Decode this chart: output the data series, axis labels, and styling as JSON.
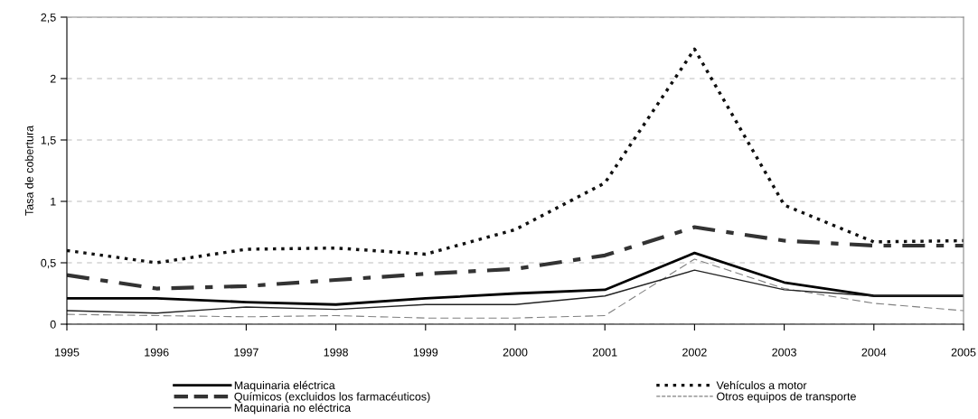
{
  "chart_data": {
    "type": "line",
    "ylabel": "Tasa de cobertura",
    "x": [
      1995,
      1996,
      1997,
      1998,
      1999,
      2000,
      2001,
      2002,
      2003,
      2004,
      2005
    ],
    "xlim": [
      1995,
      2005
    ],
    "xticks": [
      1995,
      1996,
      1997,
      1998,
      1999,
      2000,
      2001,
      2002,
      2003,
      2004,
      2005
    ],
    "ylim": [
      0,
      2.5
    ],
    "yticks": [
      0,
      {
        "value": 0.5,
        "label": "0,5"
      },
      1,
      {
        "value": 1.5,
        "label": "1,5"
      },
      2,
      {
        "value": 2.5,
        "label": "2,5"
      }
    ],
    "grid": "y",
    "legend": "bottom",
    "marker": "none",
    "series": [
      {
        "name": "Maquinaria eléctrica",
        "color": "#000000",
        "line_style": "solid",
        "values": [
          0.21,
          0.21,
          0.18,
          0.16,
          0.21,
          0.25,
          0.28,
          0.58,
          0.34,
          0.23,
          0.23
        ]
      },
      {
        "name": "Vehículos a motor",
        "color": "#111111",
        "line_style": "dotted",
        "values": [
          0.6,
          0.5,
          0.61,
          0.62,
          0.57,
          0.77,
          1.15,
          2.24,
          0.97,
          0.67,
          0.68
        ]
      },
      {
        "name": "Químicos (excluidos los farmacéuticos)",
        "color": "#333333",
        "line_style": "dashed",
        "values": [
          0.4,
          0.29,
          0.31,
          0.36,
          0.41,
          0.45,
          0.56,
          0.79,
          0.68,
          0.64,
          0.64
        ]
      },
      {
        "name": "Otros equipos de transporte",
        "color": "#808080",
        "line_style": "dashed",
        "values": [
          0.08,
          0.07,
          0.06,
          0.07,
          0.05,
          0.05,
          0.07,
          0.53,
          0.29,
          0.17,
          0.11
        ]
      },
      {
        "name": "Maquinaria no eléctrica",
        "color": "#222222",
        "line_style": "solid",
        "values": [
          0.11,
          0.09,
          0.14,
          0.12,
          0.16,
          0.16,
          0.23,
          0.44,
          0.28,
          0.23,
          0.23
        ]
      }
    ]
  }
}
